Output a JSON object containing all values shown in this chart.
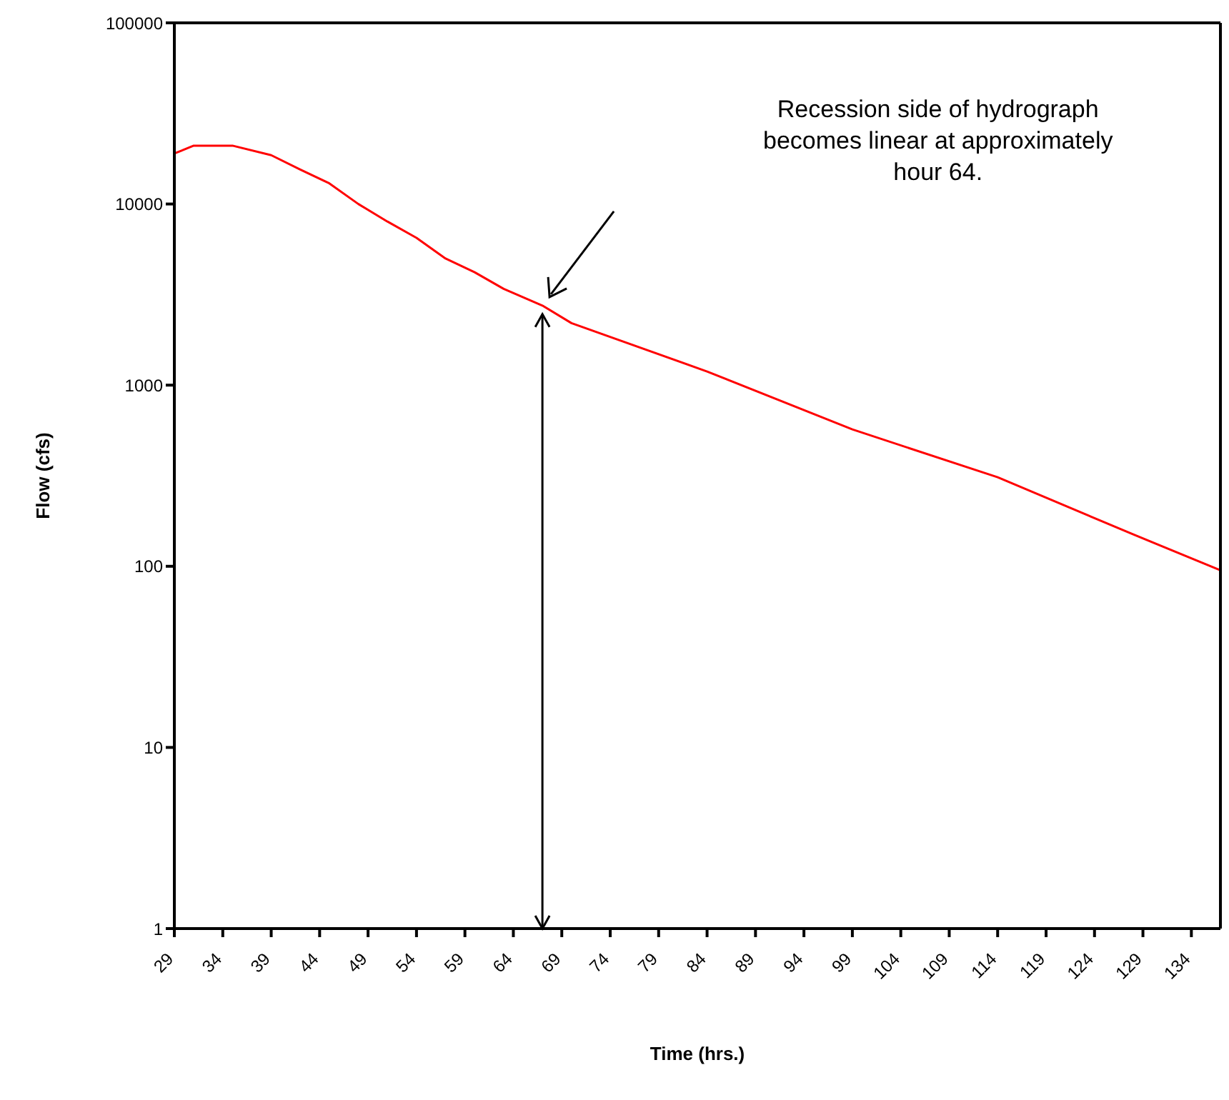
{
  "chart_data": {
    "type": "line",
    "xlabel": "Time (hrs.)",
    "ylabel": "Flow (cfs)",
    "x": [
      29,
      31,
      35,
      39,
      42,
      45,
      48,
      51,
      54,
      57,
      60,
      63,
      67,
      70,
      84,
      99,
      114,
      128,
      137
    ],
    "series": [
      {
        "color": "#ff0000",
        "values": [
          19000,
          21000,
          21000,
          18600,
          15500,
          13000,
          10000,
          8000,
          6500,
          5000,
          4200,
          3400,
          2750,
          2200,
          1190,
          570,
          310,
          150,
          95
        ]
      }
    ],
    "xlim": [
      29,
      137
    ],
    "xticks": [
      29,
      34,
      39,
      44,
      49,
      54,
      59,
      64,
      69,
      74,
      79,
      84,
      89,
      94,
      99,
      104,
      109,
      114,
      119,
      124,
      129,
      134
    ],
    "ylim": [
      1,
      100000
    ],
    "yticks": [
      1,
      10,
      100,
      1000,
      10000,
      100000
    ],
    "log": true,
    "grid": false,
    "legend": false,
    "marker": "none",
    "line_style": "solid",
    "ref_lines": [
      {
        "axis": "x",
        "value": 67,
        "color": "#000000"
      }
    ],
    "annotations": [
      "Recession side of hydrograph becomes linear at approximately hour 64."
    ]
  }
}
